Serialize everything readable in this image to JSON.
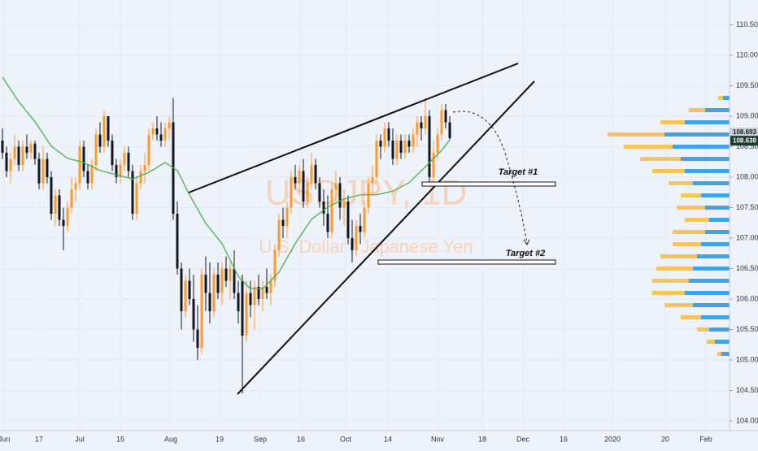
{
  "chart_data": {
    "type": "candlestick",
    "watermark": {
      "symbol": "USDJPY, 1D",
      "name": "U.S. Dollar / Japanese Yen"
    },
    "annotations": [
      "Target #1",
      "Target #2"
    ],
    "up_color": "#ff9a2e",
    "down_color": "#131722",
    "ma_color": "#4caf50",
    "profile_colors": [
      "#3fa3e8",
      "#f5c55c"
    ],
    "ylim": [
      103.84,
      110.907
    ],
    "yticks": [
      {
        "value": 104,
        "label": "104.000"
      },
      {
        "value": 104.5,
        "label": "104.500"
      },
      {
        "value": 105,
        "label": "105.000"
      },
      {
        "value": 105.5,
        "label": "105.500"
      },
      {
        "value": 106,
        "label": "106.000"
      },
      {
        "value": 106.5,
        "label": "106.500"
      },
      {
        "value": 107,
        "label": "107.000"
      },
      {
        "value": 107.5,
        "label": "107.500"
      },
      {
        "value": 108,
        "label": "108.000"
      },
      {
        "value": 108.5,
        "label": "108.500"
      },
      {
        "value": 109,
        "label": "109.000"
      },
      {
        "value": 109.5,
        "label": "109.500"
      },
      {
        "value": 110,
        "label": "110.000"
      },
      {
        "value": 110.5,
        "label": "110.500"
      }
    ],
    "xticks": [
      {
        "value": 0.4,
        "label": "Jun"
      },
      {
        "value": 9,
        "label": "17"
      },
      {
        "value": 19,
        "label": "Jul"
      },
      {
        "value": 29,
        "label": "15"
      },
      {
        "value": 41.4,
        "label": "Aug"
      },
      {
        "value": 53.4,
        "label": "19"
      },
      {
        "value": 63.4,
        "label": "Sep"
      },
      {
        "value": 73.4,
        "label": "16"
      },
      {
        "value": 84.4,
        "label": "Oct"
      },
      {
        "value": 94.8,
        "label": "14"
      },
      {
        "value": 107,
        "label": "Nov"
      },
      {
        "value": 118,
        "label": "18"
      },
      {
        "value": 128,
        "label": "Dec"
      },
      {
        "value": 138,
        "label": "16"
      },
      {
        "value": 150,
        "label": "2020"
      },
      {
        "value": 163,
        "label": "20"
      },
      {
        "value": 173,
        "label": "Feb"
      }
    ],
    "price_labels": [
      {
        "value": 108.693,
        "label": "108.693"
      },
      {
        "value": 108.638,
        "label": "108.638"
      }
    ],
    "candles": [
      [
        108.6,
        108.8,
        108.3,
        108.4
      ],
      [
        108.4,
        108.5,
        108.0,
        108.1
      ],
      [
        108.1,
        108.4,
        107.9,
        108.3
      ],
      [
        108.3,
        108.7,
        108.2,
        108.5
      ],
      [
        108.5,
        108.6,
        108.1,
        108.2
      ],
      [
        108.2,
        108.6,
        108.1,
        108.5
      ],
      [
        108.5,
        108.7,
        108.3,
        108.4
      ],
      [
        108.4,
        108.6,
        108.3,
        108.55
      ],
      [
        108.55,
        108.6,
        108.2,
        108.3
      ],
      [
        108.3,
        108.4,
        107.8,
        107.9
      ],
      [
        107.9,
        108.5,
        107.8,
        108.3
      ],
      [
        108.3,
        108.4,
        107.9,
        108.0
      ],
      [
        108.0,
        108.1,
        107.3,
        107.4
      ],
      [
        107.4,
        107.8,
        107.2,
        107.7
      ],
      [
        107.7,
        107.8,
        107.2,
        107.3
      ],
      [
        107.3,
        107.5,
        106.8,
        107.2
      ],
      [
        107.2,
        107.6,
        107.1,
        107.5
      ],
      [
        107.5,
        108.0,
        107.4,
        107.8
      ],
      [
        107.8,
        108.0,
        107.6,
        107.9
      ],
      [
        107.9,
        108.6,
        107.8,
        108.5
      ],
      [
        108.5,
        108.6,
        108.0,
        108.1
      ],
      [
        108.1,
        108.2,
        107.8,
        107.9
      ],
      [
        107.9,
        108.3,
        107.8,
        108.2
      ],
      [
        108.2,
        108.8,
        108.1,
        108.7
      ],
      [
        108.7,
        108.9,
        108.4,
        108.5
      ],
      [
        108.5,
        109.1,
        108.4,
        109.0
      ],
      [
        109.0,
        109.0,
        108.5,
        108.6
      ],
      [
        108.6,
        108.7,
        108.1,
        108.2
      ],
      [
        108.2,
        108.3,
        107.9,
        108.0
      ],
      [
        108.0,
        108.3,
        107.9,
        108.2
      ],
      [
        108.2,
        108.5,
        108.1,
        108.4
      ],
      [
        108.4,
        108.5,
        108.0,
        108.1
      ],
      [
        108.1,
        108.2,
        107.3,
        107.4
      ],
      [
        107.4,
        108.0,
        107.3,
        107.9
      ],
      [
        107.9,
        108.2,
        107.8,
        108.1
      ],
      [
        108.1,
        108.4,
        107.9,
        108.2
      ],
      [
        108.2,
        108.8,
        108.1,
        108.7
      ],
      [
        108.7,
        108.9,
        108.6,
        108.8
      ],
      [
        108.8,
        109.0,
        108.6,
        108.7
      ],
      [
        108.7,
        108.9,
        108.5,
        108.6
      ],
      [
        108.6,
        108.9,
        108.5,
        108.8
      ],
      [
        108.8,
        109.0,
        108.6,
        108.9
      ],
      [
        108.9,
        109.3,
        107.3,
        107.4
      ],
      [
        107.4,
        107.6,
        106.4,
        106.5
      ],
      [
        106.5,
        106.6,
        105.5,
        105.8
      ],
      [
        105.8,
        106.4,
        105.7,
        106.3
      ],
      [
        106.3,
        106.5,
        105.9,
        106.0
      ],
      [
        106.0,
        106.4,
        105.3,
        105.5
      ],
      [
        105.5,
        105.9,
        105.0,
        105.2
      ],
      [
        105.2,
        106.5,
        105.1,
        106.4
      ],
      [
        106.4,
        106.7,
        105.8,
        106.1
      ],
      [
        106.1,
        106.6,
        105.6,
        105.8
      ],
      [
        105.8,
        106.5,
        105.7,
        106.4
      ],
      [
        106.4,
        106.6,
        106.0,
        106.1
      ],
      [
        106.1,
        106.6,
        105.9,
        106.5
      ],
      [
        106.5,
        106.7,
        106.2,
        106.3
      ],
      [
        106.3,
        106.6,
        106.0,
        106.5
      ],
      [
        106.5,
        106.8,
        106.0,
        106.1
      ],
      [
        106.1,
        106.3,
        105.6,
        105.8
      ],
      [
        106.3,
        106.4,
        104.45,
        105.4
      ],
      [
        105.4,
        106.3,
        105.3,
        106.1
      ],
      [
        106.1,
        106.3,
        105.7,
        105.9
      ],
      [
        105.9,
        106.3,
        105.5,
        106.2
      ],
      [
        106.2,
        106.4,
        105.9,
        106.0
      ],
      [
        106.0,
        106.3,
        105.8,
        106.2
      ],
      [
        106.2,
        106.5,
        106.0,
        106.1
      ],
      [
        106.1,
        106.4,
        105.9,
        106.3
      ],
      [
        106.3,
        106.9,
        106.2,
        106.8
      ],
      [
        106.8,
        107.4,
        106.7,
        107.3
      ],
      [
        107.3,
        107.5,
        107.0,
        107.2
      ],
      [
        107.2,
        107.6,
        107.0,
        107.5
      ],
      [
        107.5,
        108.1,
        107.4,
        108.0
      ],
      [
        108.0,
        108.2,
        107.8,
        107.9
      ],
      [
        107.9,
        108.2,
        107.7,
        108.1
      ],
      [
        108.1,
        108.3,
        107.5,
        107.6
      ],
      [
        107.6,
        108.0,
        107.5,
        107.9
      ],
      [
        107.9,
        108.4,
        107.8,
        108.2
      ],
      [
        108.2,
        108.3,
        107.8,
        107.9
      ],
      [
        107.9,
        108.0,
        107.5,
        107.6
      ],
      [
        107.6,
        107.8,
        107.2,
        107.4
      ],
      [
        107.4,
        107.7,
        107.0,
        107.1
      ],
      [
        107.1,
        107.9,
        107.0,
        107.8
      ],
      [
        107.8,
        108.1,
        107.6,
        107.9
      ],
      [
        107.9,
        108.0,
        107.3,
        107.5
      ],
      [
        107.5,
        107.8,
        107.2,
        107.6
      ],
      [
        107.6,
        107.7,
        106.9,
        107.0
      ],
      [
        107.0,
        107.3,
        106.6,
        106.8
      ],
      [
        106.8,
        107.3,
        106.7,
        107.2
      ],
      [
        107.2,
        107.4,
        106.9,
        107.1
      ],
      [
        107.1,
        107.6,
        107.0,
        107.5
      ],
      [
        107.5,
        108.0,
        107.4,
        107.9
      ],
      [
        107.9,
        108.2,
        107.7,
        108.0
      ],
      [
        108.0,
        108.7,
        107.9,
        108.6
      ],
      [
        108.6,
        108.7,
        108.3,
        108.5
      ],
      [
        108.5,
        108.9,
        108.4,
        108.8
      ],
      [
        108.8,
        108.9,
        108.5,
        108.6
      ],
      [
        108.6,
        108.8,
        108.2,
        108.3
      ],
      [
        108.3,
        108.7,
        108.2,
        108.6
      ],
      [
        108.6,
        108.7,
        108.3,
        108.4
      ],
      [
        108.4,
        108.7,
        108.3,
        108.6
      ],
      [
        108.6,
        108.7,
        108.4,
        108.5
      ],
      [
        108.5,
        108.8,
        108.4,
        108.7
      ],
      [
        108.7,
        109.0,
        108.5,
        108.9
      ],
      [
        108.9,
        109.0,
        108.6,
        108.8
      ],
      [
        108.8,
        109.3,
        108.7,
        109.0
      ],
      [
        109.0,
        109.1,
        107.9,
        108.0
      ],
      [
        108.0,
        108.6,
        107.9,
        108.4
      ],
      [
        108.4,
        108.8,
        108.3,
        108.7
      ],
      [
        108.7,
        109.2,
        108.6,
        109.1
      ],
      [
        109.1,
        109.2,
        108.8,
        108.9
      ],
      [
        108.9,
        109.0,
        108.6,
        108.64
      ]
    ],
    "ma": [
      [
        0,
        109.64
      ],
      [
        4,
        109.24
      ],
      [
        8,
        108.91
      ],
      [
        12,
        108.51
      ],
      [
        16,
        108.31
      ],
      [
        20,
        108.24
      ],
      [
        24,
        108.11
      ],
      [
        28,
        108.04
      ],
      [
        32,
        107.97
      ],
      [
        36,
        108.08
      ],
      [
        40,
        108.24
      ],
      [
        43,
        108.11
      ],
      [
        46,
        107.71
      ],
      [
        50,
        107.24
      ],
      [
        54,
        106.91
      ],
      [
        58,
        106.37
      ],
      [
        61,
        106.17
      ],
      [
        64,
        106.17
      ],
      [
        68,
        106.44
      ],
      [
        72,
        106.91
      ],
      [
        76,
        107.31
      ],
      [
        80,
        107.51
      ],
      [
        84,
        107.64
      ],
      [
        88,
        107.71
      ],
      [
        92,
        107.71
      ],
      [
        96,
        107.77
      ],
      [
        100,
        107.91
      ],
      [
        104,
        108.17
      ],
      [
        108,
        108.44
      ],
      [
        110,
        108.61
      ]
    ],
    "volume_profile": [
      [
        109.3,
        8,
        6
      ],
      [
        109.1,
        30,
        20
      ],
      [
        108.9,
        55,
        30
      ],
      [
        108.7,
        80,
        70
      ],
      [
        108.5,
        70,
        60
      ],
      [
        108.3,
        60,
        50
      ],
      [
        108.1,
        55,
        40
      ],
      [
        107.9,
        45,
        30
      ],
      [
        107.7,
        35,
        25
      ],
      [
        107.5,
        30,
        35
      ],
      [
        107.3,
        25,
        30
      ],
      [
        107.1,
        30,
        40
      ],
      [
        106.9,
        35,
        35
      ],
      [
        106.7,
        40,
        45
      ],
      [
        106.5,
        45,
        45
      ],
      [
        106.3,
        50,
        45
      ],
      [
        106.1,
        55,
        40
      ],
      [
        105.9,
        45,
        35
      ],
      [
        105.7,
        35,
        25
      ],
      [
        105.5,
        25,
        15
      ],
      [
        105.3,
        18,
        10
      ],
      [
        105.1,
        10,
        5
      ]
    ]
  }
}
